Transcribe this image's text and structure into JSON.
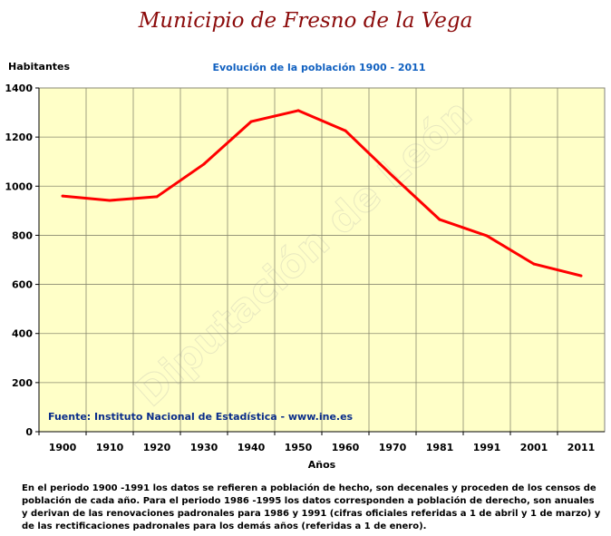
{
  "header": {
    "title": "Municipio de Fresno de la Vega"
  },
  "watermark": "Diputación de León",
  "source": "Fuente: Instituto Nacional de Estadística - www.ine.es",
  "note": "En el periodo 1900 -1991 los datos se refieren a población de hecho, son decenales y proceden de los censos de población de cada año. Para el periodo 1986 -1995 los datos corresponden a población de derecho, son anuales y derivan de las renovaciones padronales para 1986 y 1991 (cifras oficiales referidas a 1 de abril y 1 de marzo) y de las rectificaciones padronales para los demás años (referidas a 1 de enero).",
  "chart_data": {
    "type": "line",
    "title": "Evolución de la población 1900 - 2011",
    "xlabel": "Años",
    "ylabel": "Habitantes",
    "categories": [
      "1900",
      "1910",
      "1920",
      "1930",
      "1940",
      "1950",
      "1960",
      "1970",
      "1981",
      "1991",
      "2001",
      "2011"
    ],
    "series": [
      {
        "name": "Habitantes",
        "color": "#ff0000",
        "values": [
          960,
          942,
          957,
          1090,
          1263,
          1308,
          1226,
          1042,
          864,
          798,
          683,
          635
        ]
      }
    ],
    "ylim": [
      0,
      1400
    ],
    "yticks": [
      0,
      200,
      400,
      600,
      800,
      1000,
      1200,
      1400
    ],
    "grid": true,
    "plot_bg": "#ffffc8"
  }
}
